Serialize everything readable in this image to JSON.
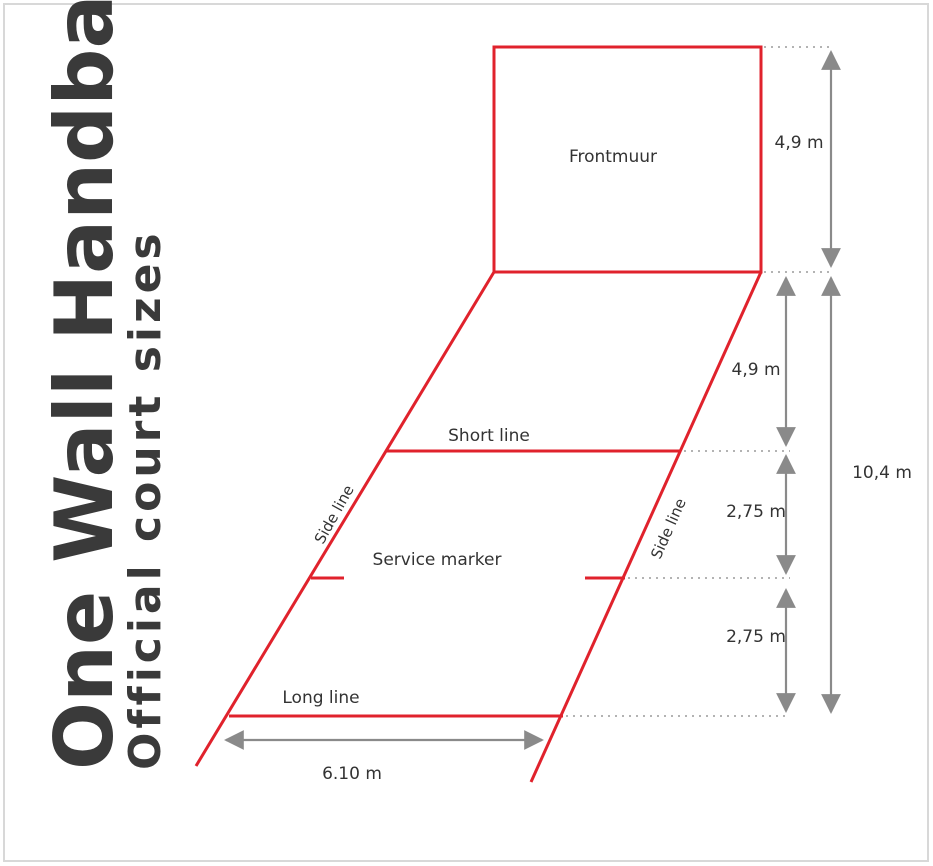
{
  "title": "One Wall Handball",
  "subtitle": "Official court sizes",
  "labels": {
    "front_wall": "Frontmuur",
    "short_line": "Short line",
    "long_line": "Long line",
    "service_marker": "Service marker",
    "side_line_left": "Side line",
    "side_line_right": "Side line"
  },
  "dimensions": {
    "wall_height": "4,9 m",
    "front_to_short": "4,9 m",
    "short_to_service": "2,75 m",
    "service_to_long": "2,75 m",
    "total_length": "10,4 m",
    "court_width": "6.10 m"
  },
  "colors": {
    "court_lines": "#e0222c",
    "dimension_lines": "#8a8a8a",
    "text": "#333333"
  }
}
